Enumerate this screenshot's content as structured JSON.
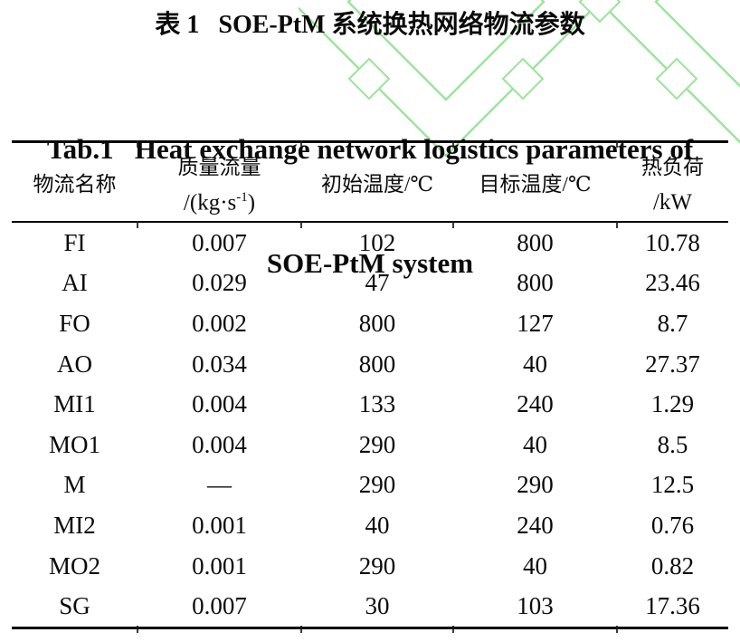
{
  "page": {
    "background": "#ffffff",
    "watermark_color": "#9be49b",
    "rule_color": "#000000"
  },
  "titles": {
    "zh": "表 1   SOE-PtM 系统换热网络物流参数",
    "en_line1": "Tab.1   Heat exchange network logistics parameters of",
    "en_line2": "SOE-PtM system"
  },
  "table": {
    "headers": {
      "stream": "物流名称",
      "mass_flow_line1": "质量流量",
      "mass_flow_unit_pre": "/(kg·s",
      "mass_flow_unit_sup": "-1",
      "mass_flow_unit_post": ")",
      "initial_temp": "初始温度/℃",
      "target_temp": "目标温度/℃",
      "heat_load_line1": "热负荷",
      "heat_load_line2": "/kW"
    },
    "rows": [
      {
        "stream": "FI",
        "mass_flow": "0.007",
        "initial_temp": "102",
        "target_temp": "800",
        "heat_load": "10.78"
      },
      {
        "stream": "AI",
        "mass_flow": "0.029",
        "initial_temp": "47",
        "target_temp": "800",
        "heat_load": "23.46"
      },
      {
        "stream": "FO",
        "mass_flow": "0.002",
        "initial_temp": "800",
        "target_temp": "127",
        "heat_load": "8.7"
      },
      {
        "stream": "AO",
        "mass_flow": "0.034",
        "initial_temp": "800",
        "target_temp": "40",
        "heat_load": "27.37"
      },
      {
        "stream": "MI1",
        "mass_flow": "0.004",
        "initial_temp": "133",
        "target_temp": "240",
        "heat_load": "1.29"
      },
      {
        "stream": "MO1",
        "mass_flow": "0.004",
        "initial_temp": "290",
        "target_temp": "40",
        "heat_load": "8.5"
      },
      {
        "stream": "M",
        "mass_flow": "—",
        "initial_temp": "290",
        "target_temp": "290",
        "heat_load": "12.5"
      },
      {
        "stream": "MI2",
        "mass_flow": "0.001",
        "initial_temp": "40",
        "target_temp": "240",
        "heat_load": "0.76"
      },
      {
        "stream": "MO2",
        "mass_flow": "0.001",
        "initial_temp": "290",
        "target_temp": "40",
        "heat_load": "0.82"
      },
      {
        "stream": "SG",
        "mass_flow": "0.007",
        "initial_temp": "30",
        "target_temp": "103",
        "heat_load": "17.36"
      }
    ]
  }
}
